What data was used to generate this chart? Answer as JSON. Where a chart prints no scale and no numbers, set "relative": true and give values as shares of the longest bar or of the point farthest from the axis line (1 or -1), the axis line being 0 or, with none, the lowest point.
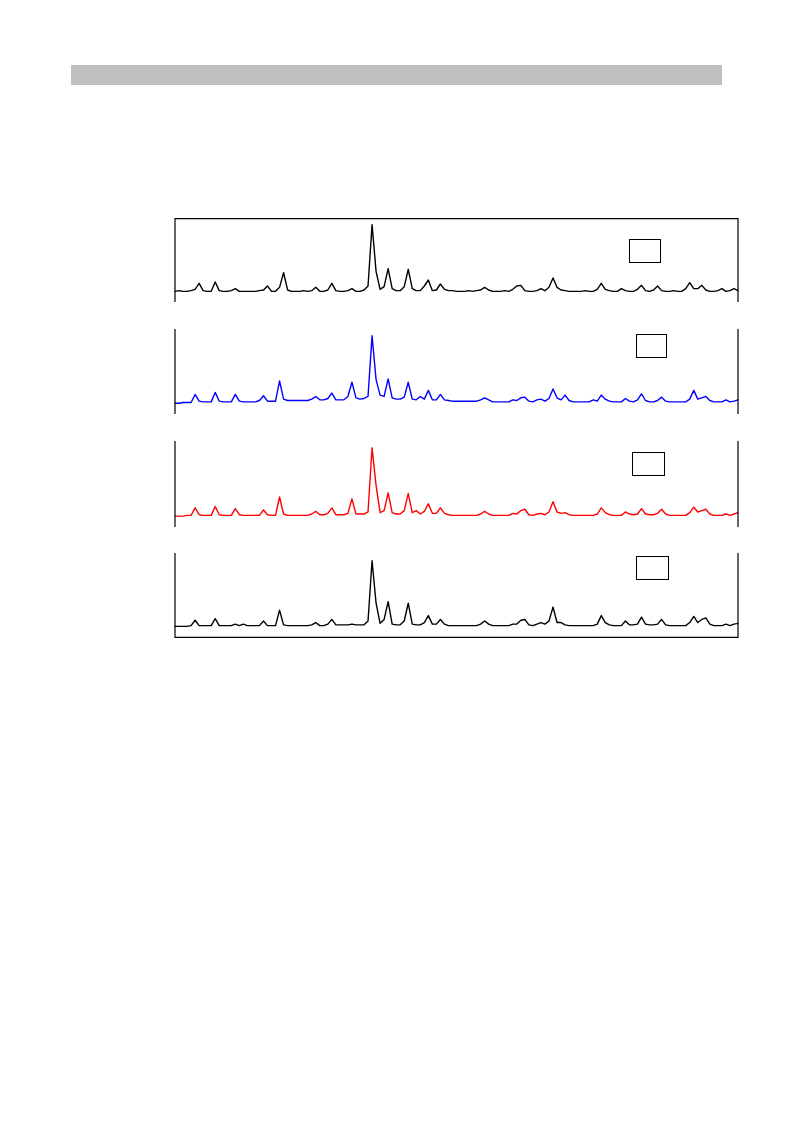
{
  "chart_data": [
    {
      "type": "line",
      "relative": true,
      "color": "#000000",
      "categories": [
        null,
        null,
        null,
        null,
        null,
        null,
        null,
        null,
        null,
        null,
        null,
        null,
        null,
        null,
        null,
        null,
        null,
        null,
        null,
        null,
        null,
        null,
        null,
        null,
        null,
        null,
        null,
        null,
        null,
        null,
        null,
        null,
        null,
        null,
        null,
        null,
        null,
        null,
        null,
        null,
        null,
        null,
        null,
        null,
        null,
        null,
        null,
        null,
        null,
        null,
        null,
        null,
        null,
        null,
        null,
        null,
        null,
        null,
        null,
        null,
        null,
        null,
        null,
        null,
        null,
        null,
        null,
        null,
        null,
        null,
        null,
        null,
        null,
        null,
        null,
        null,
        null,
        null,
        null,
        null,
        null,
        null,
        null,
        null,
        null,
        null,
        null,
        null,
        null,
        null,
        null,
        null,
        null,
        null,
        null,
        null,
        null,
        null,
        null,
        null,
        null,
        null,
        null,
        null,
        null,
        null,
        null,
        null,
        null,
        null,
        null,
        null,
        null,
        null,
        null,
        null,
        null,
        null,
        null,
        null,
        null,
        null,
        null,
        null,
        null,
        null,
        null,
        null,
        null,
        null,
        null,
        null,
        null,
        null,
        null,
        null,
        null,
        null,
        null,
        null,
        null
      ],
      "values": [
        0,
        0.01,
        0,
        0,
        0.01,
        0.03,
        0.12,
        0.01,
        0,
        0,
        0.14,
        0.01,
        0,
        0,
        0.01,
        0.04,
        0,
        0,
        0,
        0,
        0,
        0.01,
        0.02,
        0.08,
        0,
        0,
        0.06,
        0.28,
        0.02,
        0,
        0,
        0,
        0.01,
        0,
        0.01,
        0.06,
        0,
        0,
        0.02,
        0.12,
        0.01,
        0,
        0,
        0.01,
        0.04,
        0,
        0,
        0.02,
        0.08,
        1,
        0.3,
        0.03,
        0.07,
        0.34,
        0.04,
        0.01,
        0.01,
        0.07,
        0.33,
        0.04,
        0.01,
        0.01,
        0.08,
        0.17,
        0.01,
        0.02,
        0.11,
        0.03,
        0.01,
        0.01,
        0,
        0,
        0,
        0.01,
        0,
        0.01,
        0.02,
        0.06,
        0.02,
        0,
        0,
        0,
        0.01,
        0,
        0.03,
        0.08,
        0.09,
        0.01,
        0,
        0,
        0.01,
        0.04,
        0.01,
        0.06,
        0.2,
        0.06,
        0.02,
        0.01,
        0,
        0,
        0,
        0,
        0.01,
        0,
        0,
        0.03,
        0.12,
        0.03,
        0.01,
        0,
        0,
        0.04,
        0.01,
        0,
        0,
        0.03,
        0.09,
        0.01,
        0,
        0.02,
        0.08,
        0.01,
        0,
        0,
        0.01,
        0,
        0,
        0.04,
        0.13,
        0.04,
        0.04,
        0.09,
        0.02,
        0,
        0,
        0.01,
        0.04,
        0,
        0.01,
        0.04,
        0.01
      ]
    },
    {
      "type": "line",
      "relative": true,
      "color": "#0000ff",
      "categories": [
        null,
        null,
        null,
        null,
        null,
        null,
        null,
        null,
        null,
        null,
        null,
        null,
        null,
        null,
        null,
        null,
        null,
        null,
        null,
        null,
        null,
        null,
        null,
        null,
        null,
        null,
        null,
        null,
        null,
        null,
        null,
        null,
        null,
        null,
        null,
        null,
        null,
        null,
        null,
        null,
        null,
        null,
        null,
        null,
        null,
        null,
        null,
        null,
        null,
        null,
        null,
        null,
        null,
        null,
        null,
        null,
        null,
        null,
        null,
        null,
        null,
        null,
        null,
        null,
        null,
        null,
        null,
        null,
        null,
        null,
        null,
        null,
        null,
        null,
        null,
        null,
        null,
        null,
        null,
        null,
        null,
        null,
        null,
        null,
        null,
        null,
        null,
        null,
        null,
        null,
        null,
        null,
        null,
        null,
        null,
        null,
        null,
        null,
        null,
        null,
        null,
        null,
        null,
        null,
        null,
        null,
        null,
        null,
        null,
        null,
        null,
        null,
        null,
        null,
        null,
        null,
        null,
        null,
        null,
        null,
        null,
        null,
        null,
        null,
        null,
        null,
        null,
        null,
        null,
        null,
        null,
        null,
        null,
        null,
        null,
        null,
        null,
        null,
        null,
        null,
        null
      ],
      "values": [
        0,
        0,
        0.01,
        0.01,
        0.01,
        0.13,
        0.03,
        0.02,
        0.02,
        0.02,
        0.16,
        0.03,
        0.02,
        0.02,
        0.02,
        0.13,
        0.03,
        0.02,
        0.02,
        0.02,
        0.02,
        0.04,
        0.11,
        0.03,
        0.03,
        0.03,
        0.33,
        0.06,
        0.04,
        0.04,
        0.04,
        0.04,
        0.04,
        0.04,
        0.06,
        0.1,
        0.05,
        0.05,
        0.07,
        0.15,
        0.05,
        0.05,
        0.05,
        0.1,
        0.31,
        0.08,
        0.06,
        0.07,
        0.1,
        1,
        0.35,
        0.12,
        0.1,
        0.36,
        0.08,
        0.06,
        0.06,
        0.09,
        0.31,
        0.06,
        0.05,
        0.1,
        0.06,
        0.19,
        0.05,
        0.05,
        0.13,
        0.05,
        0.04,
        0.03,
        0.03,
        0.03,
        0.03,
        0.03,
        0.03,
        0.03,
        0.05,
        0.08,
        0.05,
        0.02,
        0.02,
        0.02,
        0.02,
        0.02,
        0.05,
        0.04,
        0.08,
        0.09,
        0.03,
        0.02,
        0.05,
        0.06,
        0.03,
        0.07,
        0.21,
        0.08,
        0.05,
        0.12,
        0.04,
        0.02,
        0.02,
        0.02,
        0.02,
        0.02,
        0.05,
        0.03,
        0.12,
        0.06,
        0.03,
        0.02,
        0.02,
        0.02,
        0.07,
        0.03,
        0.02,
        0.05,
        0.14,
        0.04,
        0.02,
        0.02,
        0.04,
        0.09,
        0.03,
        0.02,
        0.02,
        0.02,
        0.02,
        0.02,
        0.06,
        0.19,
        0.06,
        0.08,
        0.1,
        0.04,
        0.02,
        0.02,
        0.02,
        0.05,
        0.02,
        0.03,
        0.05
      ]
    },
    {
      "type": "line",
      "relative": true,
      "color": "#ff0000",
      "categories": [
        null,
        null,
        null,
        null,
        null,
        null,
        null,
        null,
        null,
        null,
        null,
        null,
        null,
        null,
        null,
        null,
        null,
        null,
        null,
        null,
        null,
        null,
        null,
        null,
        null,
        null,
        null,
        null,
        null,
        null,
        null,
        null,
        null,
        null,
        null,
        null,
        null,
        null,
        null,
        null,
        null,
        null,
        null,
        null,
        null,
        null,
        null,
        null,
        null,
        null,
        null,
        null,
        null,
        null,
        null,
        null,
        null,
        null,
        null,
        null,
        null,
        null,
        null,
        null,
        null,
        null,
        null,
        null,
        null,
        null,
        null,
        null,
        null,
        null,
        null,
        null,
        null,
        null,
        null,
        null,
        null,
        null,
        null,
        null,
        null,
        null,
        null,
        null,
        null,
        null,
        null,
        null,
        null,
        null,
        null,
        null,
        null,
        null,
        null,
        null,
        null,
        null,
        null,
        null,
        null,
        null,
        null,
        null,
        null,
        null,
        null,
        null,
        null,
        null,
        null,
        null,
        null,
        null,
        null,
        null,
        null,
        null,
        null,
        null,
        null,
        null,
        null,
        null,
        null,
        null,
        null,
        null,
        null,
        null,
        null,
        null,
        null,
        null,
        null,
        null,
        null
      ],
      "values": [
        0,
        0,
        0,
        0.01,
        0.01,
        0.12,
        0.02,
        0.01,
        0.01,
        0.01,
        0.14,
        0.02,
        0.01,
        0.01,
        0.01,
        0.11,
        0.02,
        0.01,
        0.01,
        0.01,
        0.01,
        0.01,
        0.09,
        0.02,
        0.01,
        0.01,
        0.28,
        0.03,
        0.01,
        0.01,
        0.01,
        0.01,
        0.01,
        0.01,
        0.03,
        0.07,
        0.02,
        0.02,
        0.04,
        0.12,
        0.02,
        0.02,
        0.02,
        0.04,
        0.25,
        0.03,
        0.03,
        0.03,
        0.06,
        1,
        0.45,
        0.05,
        0.08,
        0.34,
        0.05,
        0.03,
        0.03,
        0.08,
        0.33,
        0.05,
        0.08,
        0.03,
        0.07,
        0.18,
        0.04,
        0.04,
        0.12,
        0.04,
        0.02,
        0.01,
        0.01,
        0.01,
        0.01,
        0.01,
        0.01,
        0.01,
        0.03,
        0.07,
        0.03,
        0.01,
        0.01,
        0.01,
        0.01,
        0.01,
        0.04,
        0.03,
        0.08,
        0.1,
        0.02,
        0.01,
        0.03,
        0.04,
        0.02,
        0.06,
        0.21,
        0.06,
        0.04,
        0.05,
        0.02,
        0.01,
        0.01,
        0.01,
        0.01,
        0.01,
        0.01,
        0.03,
        0.12,
        0.05,
        0.02,
        0.01,
        0.01,
        0.01,
        0.06,
        0.03,
        0.02,
        0.03,
        0.11,
        0.03,
        0.02,
        0.02,
        0.04,
        0.1,
        0.03,
        0.01,
        0.01,
        0.01,
        0.01,
        0.01,
        0.05,
        0.13,
        0.06,
        0.08,
        0.1,
        0.03,
        0.01,
        0.01,
        0.01,
        0.03,
        0.01,
        0.03,
        0.05
      ]
    },
    {
      "type": "line",
      "relative": true,
      "color": "#000000",
      "categories": [
        null,
        null,
        null,
        null,
        null,
        null,
        null,
        null,
        null,
        null,
        null,
        null,
        null,
        null,
        null,
        null,
        null,
        null,
        null,
        null,
        null,
        null,
        null,
        null,
        null,
        null,
        null,
        null,
        null,
        null,
        null,
        null,
        null,
        null,
        null,
        null,
        null,
        null,
        null,
        null,
        null,
        null,
        null,
        null,
        null,
        null,
        null,
        null,
        null,
        null,
        null,
        null,
        null,
        null,
        null,
        null,
        null,
        null,
        null,
        null,
        null,
        null,
        null,
        null,
        null,
        null,
        null,
        null,
        null,
        null,
        null,
        null,
        null,
        null,
        null,
        null,
        null,
        null,
        null,
        null,
        null,
        null,
        null,
        null,
        null,
        null,
        null,
        null,
        null,
        null,
        null,
        null,
        null,
        null,
        null,
        null,
        null,
        null,
        null,
        null,
        null,
        null,
        null,
        null,
        null,
        null,
        null,
        null,
        null,
        null,
        null,
        null,
        null,
        null,
        null,
        null,
        null,
        null,
        null,
        null,
        null,
        null,
        null,
        null,
        null,
        null,
        null,
        null,
        null,
        null,
        null,
        null,
        null,
        null,
        null,
        null,
        null,
        null,
        null,
        null,
        null
      ],
      "values": [
        0.15,
        0.15,
        0.15,
        0.15,
        0.16,
        0.23,
        0.16,
        0.16,
        0.16,
        0.16,
        0.25,
        0.16,
        0.16,
        0.16,
        0.16,
        0.18,
        0.16,
        0.18,
        0.16,
        0.16,
        0.16,
        0.16,
        0.22,
        0.16,
        0.16,
        0.16,
        0.36,
        0.17,
        0.16,
        0.16,
        0.16,
        0.16,
        0.16,
        0.16,
        0.17,
        0.2,
        0.16,
        0.16,
        0.18,
        0.24,
        0.17,
        0.17,
        0.17,
        0.17,
        0.18,
        0.17,
        0.17,
        0.17,
        0.22,
        1,
        0.45,
        0.19,
        0.24,
        0.47,
        0.18,
        0.17,
        0.17,
        0.22,
        0.45,
        0.18,
        0.17,
        0.17,
        0.2,
        0.29,
        0.18,
        0.18,
        0.24,
        0.18,
        0.16,
        0.16,
        0.16,
        0.16,
        0.16,
        0.16,
        0.16,
        0.16,
        0.18,
        0.22,
        0.18,
        0.16,
        0.16,
        0.16,
        0.16,
        0.16,
        0.18,
        0.18,
        0.23,
        0.24,
        0.17,
        0.16,
        0.18,
        0.2,
        0.18,
        0.22,
        0.4,
        0.2,
        0.2,
        0.17,
        0.16,
        0.16,
        0.16,
        0.16,
        0.16,
        0.16,
        0.16,
        0.18,
        0.29,
        0.2,
        0.17,
        0.16,
        0.16,
        0.16,
        0.22,
        0.17,
        0.17,
        0.18,
        0.27,
        0.18,
        0.17,
        0.17,
        0.18,
        0.24,
        0.17,
        0.16,
        0.16,
        0.16,
        0.16,
        0.16,
        0.2,
        0.28,
        0.2,
        0.24,
        0.26,
        0.18,
        0.16,
        0.16,
        0.16,
        0.18,
        0.16,
        0.18,
        0.19
      ]
    }
  ]
}
